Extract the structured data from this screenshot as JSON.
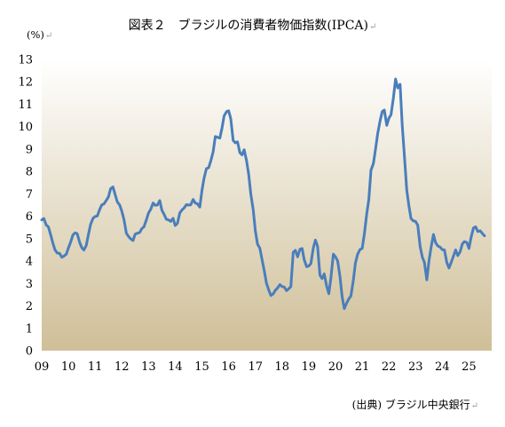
{
  "title": "図表２　ブラジルの消費者物価指数(IPCA)",
  "unit": "(%)",
  "source": "(出典) ブラジル中央銀行",
  "return_mark": "↵",
  "colors": {
    "line": "#4a7ebb",
    "plot_top": "#ffffff",
    "plot_bottom": "#cfbf98"
  },
  "chart_data": {
    "type": "line",
    "title": "図表２　ブラジルの消費者物価指数(IPCA)",
    "ylabel": "(%)",
    "xlabel": "",
    "ylim": [
      0,
      13
    ],
    "yticks": [
      0,
      1,
      2,
      3,
      4,
      5,
      6,
      7,
      8,
      9,
      10,
      11,
      12,
      13
    ],
    "xlim": [
      2009.0,
      2025.85
    ],
    "xtick_labels": [
      "09",
      "10",
      "11",
      "12",
      "13",
      "14",
      "15",
      "16",
      "17",
      "18",
      "19",
      "20",
      "21",
      "22",
      "23",
      "24",
      "25"
    ],
    "grid": false,
    "legend": "none",
    "series": [
      {
        "points": [
          [
            2009.0,
            5.84
          ],
          [
            2009.08,
            5.9
          ],
          [
            2009.17,
            5.61
          ],
          [
            2009.25,
            5.53
          ],
          [
            2009.33,
            5.2
          ],
          [
            2009.42,
            4.8
          ],
          [
            2009.5,
            4.5
          ],
          [
            2009.58,
            4.36
          ],
          [
            2009.67,
            4.34
          ],
          [
            2009.75,
            4.17
          ],
          [
            2009.83,
            4.22
          ],
          [
            2009.92,
            4.31
          ],
          [
            2010.0,
            4.59
          ],
          [
            2010.08,
            4.83
          ],
          [
            2010.17,
            5.17
          ],
          [
            2010.25,
            5.26
          ],
          [
            2010.33,
            5.22
          ],
          [
            2010.42,
            4.84
          ],
          [
            2010.5,
            4.6
          ],
          [
            2010.58,
            4.49
          ],
          [
            2010.67,
            4.7
          ],
          [
            2010.75,
            5.2
          ],
          [
            2010.83,
            5.64
          ],
          [
            2010.92,
            5.91
          ],
          [
            2011.0,
            5.99
          ],
          [
            2011.08,
            6.01
          ],
          [
            2011.17,
            6.3
          ],
          [
            2011.25,
            6.51
          ],
          [
            2011.33,
            6.55
          ],
          [
            2011.42,
            6.71
          ],
          [
            2011.5,
            6.87
          ],
          [
            2011.58,
            7.23
          ],
          [
            2011.67,
            7.31
          ],
          [
            2011.75,
            6.97
          ],
          [
            2011.83,
            6.64
          ],
          [
            2011.92,
            6.5
          ],
          [
            2012.0,
            6.22
          ],
          [
            2012.08,
            5.85
          ],
          [
            2012.17,
            5.24
          ],
          [
            2012.25,
            5.1
          ],
          [
            2012.33,
            4.99
          ],
          [
            2012.42,
            4.92
          ],
          [
            2012.5,
            5.2
          ],
          [
            2012.58,
            5.24
          ],
          [
            2012.67,
            5.28
          ],
          [
            2012.75,
            5.45
          ],
          [
            2012.83,
            5.53
          ],
          [
            2012.92,
            5.84
          ],
          [
            2013.0,
            6.15
          ],
          [
            2013.08,
            6.31
          ],
          [
            2013.17,
            6.59
          ],
          [
            2013.25,
            6.49
          ],
          [
            2013.33,
            6.5
          ],
          [
            2013.42,
            6.7
          ],
          [
            2013.5,
            6.27
          ],
          [
            2013.58,
            6.09
          ],
          [
            2013.67,
            5.86
          ],
          [
            2013.75,
            5.84
          ],
          [
            2013.83,
            5.77
          ],
          [
            2013.92,
            5.91
          ],
          [
            2014.0,
            5.59
          ],
          [
            2014.08,
            5.68
          ],
          [
            2014.17,
            6.15
          ],
          [
            2014.25,
            6.28
          ],
          [
            2014.33,
            6.37
          ],
          [
            2014.42,
            6.52
          ],
          [
            2014.5,
            6.5
          ],
          [
            2014.58,
            6.51
          ],
          [
            2014.67,
            6.75
          ],
          [
            2014.75,
            6.59
          ],
          [
            2014.83,
            6.56
          ],
          [
            2014.92,
            6.41
          ],
          [
            2015.0,
            7.14
          ],
          [
            2015.08,
            7.7
          ],
          [
            2015.17,
            8.13
          ],
          [
            2015.25,
            8.17
          ],
          [
            2015.33,
            8.47
          ],
          [
            2015.42,
            8.89
          ],
          [
            2015.5,
            9.56
          ],
          [
            2015.58,
            9.53
          ],
          [
            2015.67,
            9.49
          ],
          [
            2015.75,
            9.93
          ],
          [
            2015.83,
            10.48
          ],
          [
            2015.92,
            10.67
          ],
          [
            2016.0,
            10.71
          ],
          [
            2016.08,
            10.36
          ],
          [
            2016.17,
            9.39
          ],
          [
            2016.25,
            9.28
          ],
          [
            2016.33,
            9.32
          ],
          [
            2016.42,
            8.84
          ],
          [
            2016.5,
            8.74
          ],
          [
            2016.58,
            8.97
          ],
          [
            2016.67,
            8.48
          ],
          [
            2016.75,
            7.87
          ],
          [
            2016.83,
            6.99
          ],
          [
            2016.92,
            6.29
          ],
          [
            2017.0,
            5.35
          ],
          [
            2017.08,
            4.76
          ],
          [
            2017.17,
            4.57
          ],
          [
            2017.25,
            4.08
          ],
          [
            2017.33,
            3.6
          ],
          [
            2017.42,
            3.0
          ],
          [
            2017.5,
            2.71
          ],
          [
            2017.58,
            2.46
          ],
          [
            2017.67,
            2.54
          ],
          [
            2017.75,
            2.7
          ],
          [
            2017.83,
            2.8
          ],
          [
            2017.92,
            2.95
          ],
          [
            2018.0,
            2.86
          ],
          [
            2018.08,
            2.84
          ],
          [
            2018.17,
            2.68
          ],
          [
            2018.25,
            2.76
          ],
          [
            2018.33,
            2.86
          ],
          [
            2018.42,
            4.39
          ],
          [
            2018.5,
            4.48
          ],
          [
            2018.58,
            4.19
          ],
          [
            2018.67,
            4.53
          ],
          [
            2018.75,
            4.56
          ],
          [
            2018.83,
            4.05
          ],
          [
            2018.92,
            3.75
          ],
          [
            2019.0,
            3.78
          ],
          [
            2019.08,
            3.89
          ],
          [
            2019.17,
            4.58
          ],
          [
            2019.25,
            4.94
          ],
          [
            2019.33,
            4.66
          ],
          [
            2019.42,
            3.37
          ],
          [
            2019.5,
            3.22
          ],
          [
            2019.58,
            3.43
          ],
          [
            2019.67,
            2.89
          ],
          [
            2019.75,
            2.54
          ],
          [
            2019.83,
            3.27
          ],
          [
            2019.92,
            4.31
          ],
          [
            2020.0,
            4.19
          ],
          [
            2020.08,
            4.01
          ],
          [
            2020.17,
            3.3
          ],
          [
            2020.25,
            2.4
          ],
          [
            2020.33,
            1.88
          ],
          [
            2020.42,
            2.13
          ],
          [
            2020.5,
            2.31
          ],
          [
            2020.58,
            2.44
          ],
          [
            2020.67,
            3.14
          ],
          [
            2020.75,
            3.92
          ],
          [
            2020.83,
            4.31
          ],
          [
            2020.92,
            4.52
          ],
          [
            2021.0,
            4.56
          ],
          [
            2021.08,
            5.2
          ],
          [
            2021.17,
            6.1
          ],
          [
            2021.25,
            6.76
          ],
          [
            2021.33,
            8.06
          ],
          [
            2021.42,
            8.35
          ],
          [
            2021.5,
            8.99
          ],
          [
            2021.58,
            9.68
          ],
          [
            2021.67,
            10.25
          ],
          [
            2021.75,
            10.67
          ],
          [
            2021.83,
            10.74
          ],
          [
            2021.92,
            10.06
          ],
          [
            2022.0,
            10.38
          ],
          [
            2022.08,
            10.54
          ],
          [
            2022.17,
            11.3
          ],
          [
            2022.25,
            12.13
          ],
          [
            2022.33,
            11.73
          ],
          [
            2022.42,
            11.89
          ],
          [
            2022.5,
            10.07
          ],
          [
            2022.58,
            8.73
          ],
          [
            2022.67,
            7.17
          ],
          [
            2022.75,
            6.47
          ],
          [
            2022.83,
            5.9
          ],
          [
            2022.92,
            5.79
          ],
          [
            2023.0,
            5.77
          ],
          [
            2023.08,
            5.6
          ],
          [
            2023.17,
            4.65
          ],
          [
            2023.25,
            4.18
          ],
          [
            2023.33,
            3.94
          ],
          [
            2023.42,
            3.16
          ],
          [
            2023.5,
            3.99
          ],
          [
            2023.58,
            4.61
          ],
          [
            2023.67,
            5.19
          ],
          [
            2023.75,
            4.82
          ],
          [
            2023.83,
            4.68
          ],
          [
            2023.92,
            4.62
          ],
          [
            2024.0,
            4.51
          ],
          [
            2024.08,
            4.5
          ],
          [
            2024.17,
            3.93
          ],
          [
            2024.25,
            3.69
          ],
          [
            2024.33,
            3.93
          ],
          [
            2024.42,
            4.23
          ],
          [
            2024.5,
            4.5
          ],
          [
            2024.58,
            4.24
          ],
          [
            2024.67,
            4.42
          ],
          [
            2024.75,
            4.76
          ],
          [
            2024.83,
            4.87
          ],
          [
            2024.92,
            4.83
          ],
          [
            2025.0,
            4.56
          ],
          [
            2025.08,
            5.06
          ],
          [
            2025.17,
            5.48
          ],
          [
            2025.25,
            5.53
          ],
          [
            2025.33,
            5.32
          ],
          [
            2025.42,
            5.35
          ],
          [
            2025.5,
            5.23
          ],
          [
            2025.58,
            5.13
          ]
        ]
      }
    ]
  }
}
